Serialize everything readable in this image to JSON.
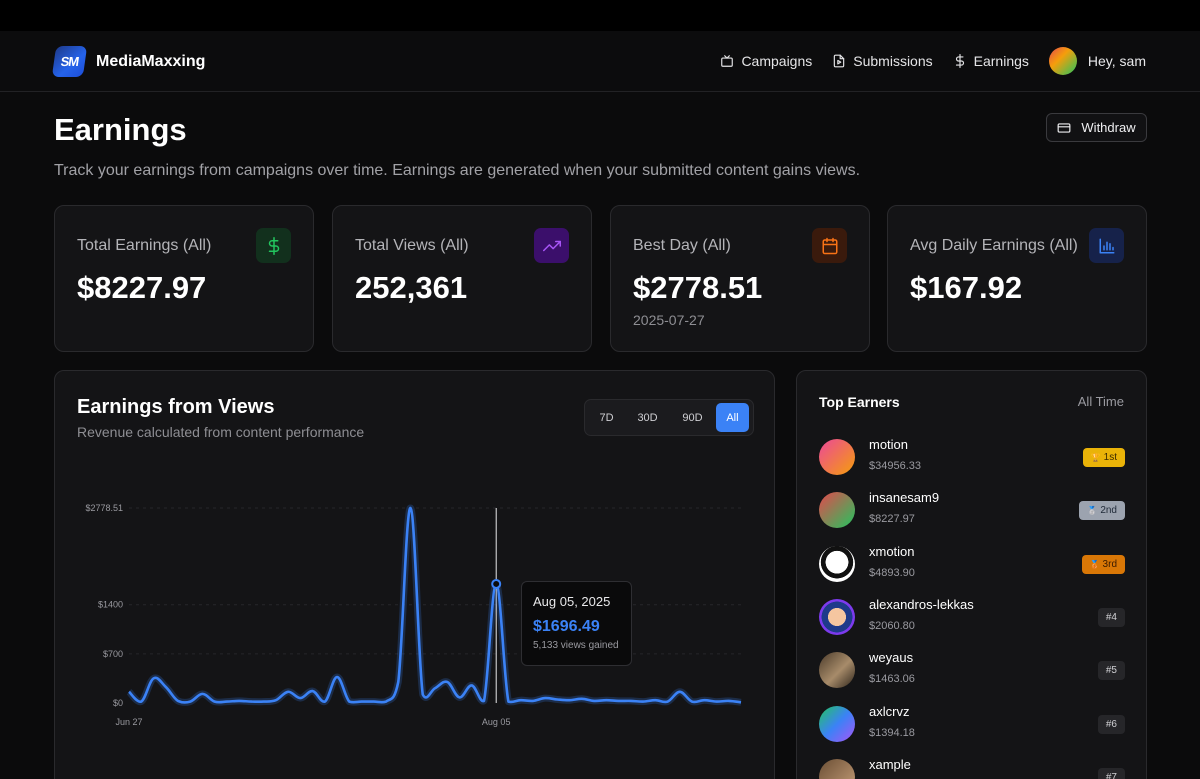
{
  "brand": {
    "name": "MediaMaxxing",
    "logo_text": "SM"
  },
  "nav": {
    "items": [
      {
        "label": "Campaigns",
        "icon": "tv-icon"
      },
      {
        "label": "Submissions",
        "icon": "file-play-icon"
      },
      {
        "label": "Earnings",
        "icon": "dollar-icon"
      }
    ],
    "greeting": "Hey, sam"
  },
  "page": {
    "title": "Earnings",
    "description": "Track your earnings from campaigns over time. Earnings are generated when your submitted content gains views.",
    "withdraw_label": "Withdraw"
  },
  "stats": [
    {
      "label": "Total Earnings (All)",
      "value": "$8227.97",
      "sub": "",
      "icon": "dollar-icon",
      "color": "#22c55e",
      "bg": "#12301d"
    },
    {
      "label": "Total Views (All)",
      "value": "252,361",
      "sub": "",
      "icon": "trending-up-icon",
      "color": "#a855f7",
      "bg": "#3b0f6b"
    },
    {
      "label": "Best Day (All)",
      "value": "$2778.51",
      "sub": "2025-07-27",
      "icon": "calendar-icon",
      "color": "#f97316",
      "bg": "#3a1a0c"
    },
    {
      "label": "Avg Daily Earnings (All)",
      "value": "$167.92",
      "sub": "",
      "icon": "bar-chart-icon",
      "color": "#3b82f6",
      "bg": "#16224a"
    }
  ],
  "chart_card": {
    "title": "Earnings from Views",
    "subtitle": "Revenue calculated from content performance",
    "ranges": [
      "7D",
      "30D",
      "90D",
      "All"
    ],
    "active_range": "All",
    "tooltip": {
      "date": "Aug 05, 2025",
      "value": "$1696.49",
      "views": "5,133 views gained"
    }
  },
  "chart_data": {
    "type": "area",
    "xlabel": "",
    "ylabel": "",
    "x_ticks": [
      "Jun 27",
      "Aug 05"
    ],
    "y_ticks": [
      {
        "label": "$0",
        "value": 0
      },
      {
        "label": "$700",
        "value": 700
      },
      {
        "label": "$1400",
        "value": 1400
      },
      {
        "label": "$2778.51",
        "value": 2778.51
      }
    ],
    "ylim": [
      0,
      2778.51
    ],
    "grid": true,
    "highlight": {
      "date": "Aug 05",
      "value": 1696.49
    },
    "series": [
      {
        "values": [
          160,
          20,
          350,
          230,
          30,
          20,
          130,
          20,
          20,
          30,
          20,
          20,
          40,
          160,
          70,
          170,
          20,
          370,
          20,
          20,
          20,
          20,
          300,
          2778.51,
          120,
          210,
          300,
          80,
          250,
          30,
          1696.49,
          20,
          40,
          30,
          70,
          50,
          40,
          60,
          30,
          40,
          30,
          30,
          20,
          40,
          20,
          160,
          20,
          40,
          20,
          30,
          10
        ]
      }
    ]
  },
  "leaderboard": {
    "title": "Top Earners",
    "period": "All Time",
    "entries": [
      {
        "name": "motion",
        "amount": "$34956.33",
        "badge": "1st",
        "badge_icon": "🏆",
        "badge_bg": "#eab308",
        "badge_fg": "#3b2a00",
        "avatar": "linear-gradient(135deg,#ec4899,#f59e0b)"
      },
      {
        "name": "insanesam9",
        "amount": "$8227.97",
        "badge": "2nd",
        "badge_icon": "🥈",
        "badge_bg": "#9ca3af",
        "badge_fg": "#1f2937",
        "avatar": "linear-gradient(135deg,#e5484d,#22c55e)"
      },
      {
        "name": "xmotion",
        "amount": "$4893.90",
        "badge": "3rd",
        "badge_icon": "🥉",
        "badge_bg": "#d97706",
        "badge_fg": "#3a1a00",
        "avatar": "radial-gradient(circle at 50% 45%,#fff 0 42%,#111 43% 60%,#fff 61%)"
      },
      {
        "name": "alexandros-lekkas",
        "amount": "$2060.80",
        "badge": "#4",
        "badge_icon": "",
        "badge_bg": "",
        "badge_fg": "",
        "avatar": "radial-gradient(circle at 50% 50%,#f5c6a0 0 35%,#1e3a8a 36% 60%,#7c3aed 61%)"
      },
      {
        "name": "weyaus",
        "amount": "$1463.06",
        "badge": "#5",
        "badge_icon": "",
        "badge_bg": "",
        "badge_fg": "",
        "avatar": "linear-gradient(135deg,#4b3b2a,#a78b6a 55%,#2d241a)"
      },
      {
        "name": "axlcrvz",
        "amount": "$1394.18",
        "badge": "#6",
        "badge_icon": "",
        "badge_bg": "",
        "badge_fg": "",
        "avatar": "linear-gradient(135deg,#22c55e,#3b82f6 50%,#a855f7)"
      },
      {
        "name": "xample",
        "amount": "",
        "badge": "#7",
        "badge_icon": "",
        "badge_bg": "",
        "badge_fg": "",
        "avatar": "linear-gradient(135deg,#6b4f35,#c8a07a)"
      }
    ]
  }
}
